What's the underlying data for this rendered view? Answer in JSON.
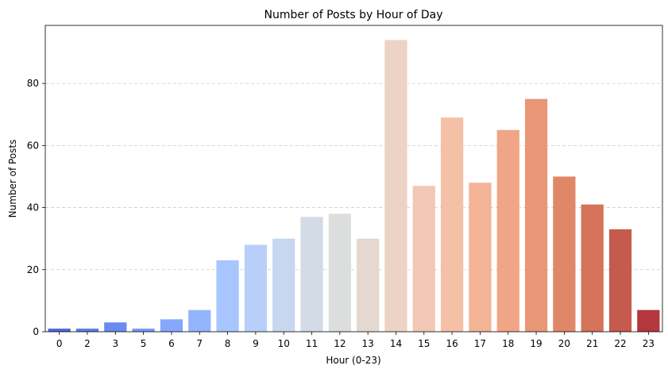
{
  "chart_data": {
    "type": "bar",
    "title": "Number of Posts by Hour of Day",
    "xlabel": "Hour (0-23)",
    "ylabel": "Number of Posts",
    "categories": [
      "0",
      "2",
      "3",
      "5",
      "6",
      "7",
      "8",
      "9",
      "10",
      "11",
      "12",
      "13",
      "14",
      "15",
      "16",
      "17",
      "18",
      "19",
      "20",
      "21",
      "22",
      "23"
    ],
    "values": [
      1,
      1,
      3,
      1,
      4,
      7,
      23,
      28,
      30,
      37,
      38,
      30,
      94,
      47,
      69,
      48,
      65,
      75,
      50,
      41,
      33,
      7
    ],
    "colors": [
      "#4f68d8",
      "#5c7be6",
      "#6a8bef",
      "#7799f6",
      "#86a7fb",
      "#94b5fe",
      "#a7c5fe",
      "#b8d0f9",
      "#c7d7f0",
      "#d3dbe7",
      "#dcdddd",
      "#e5d8d1",
      "#ecd3c5",
      "#f1c8b6",
      "#f4c0a6",
      "#f3b396",
      "#f0a586",
      "#e99677",
      "#e08767",
      "#d5735a",
      "#c65a4c",
      "#b3373e"
    ],
    "ylim": [
      0,
      98.7
    ],
    "yticks": [
      0,
      20,
      40,
      60,
      80
    ],
    "grid": "y-dashed",
    "legend": "none"
  }
}
